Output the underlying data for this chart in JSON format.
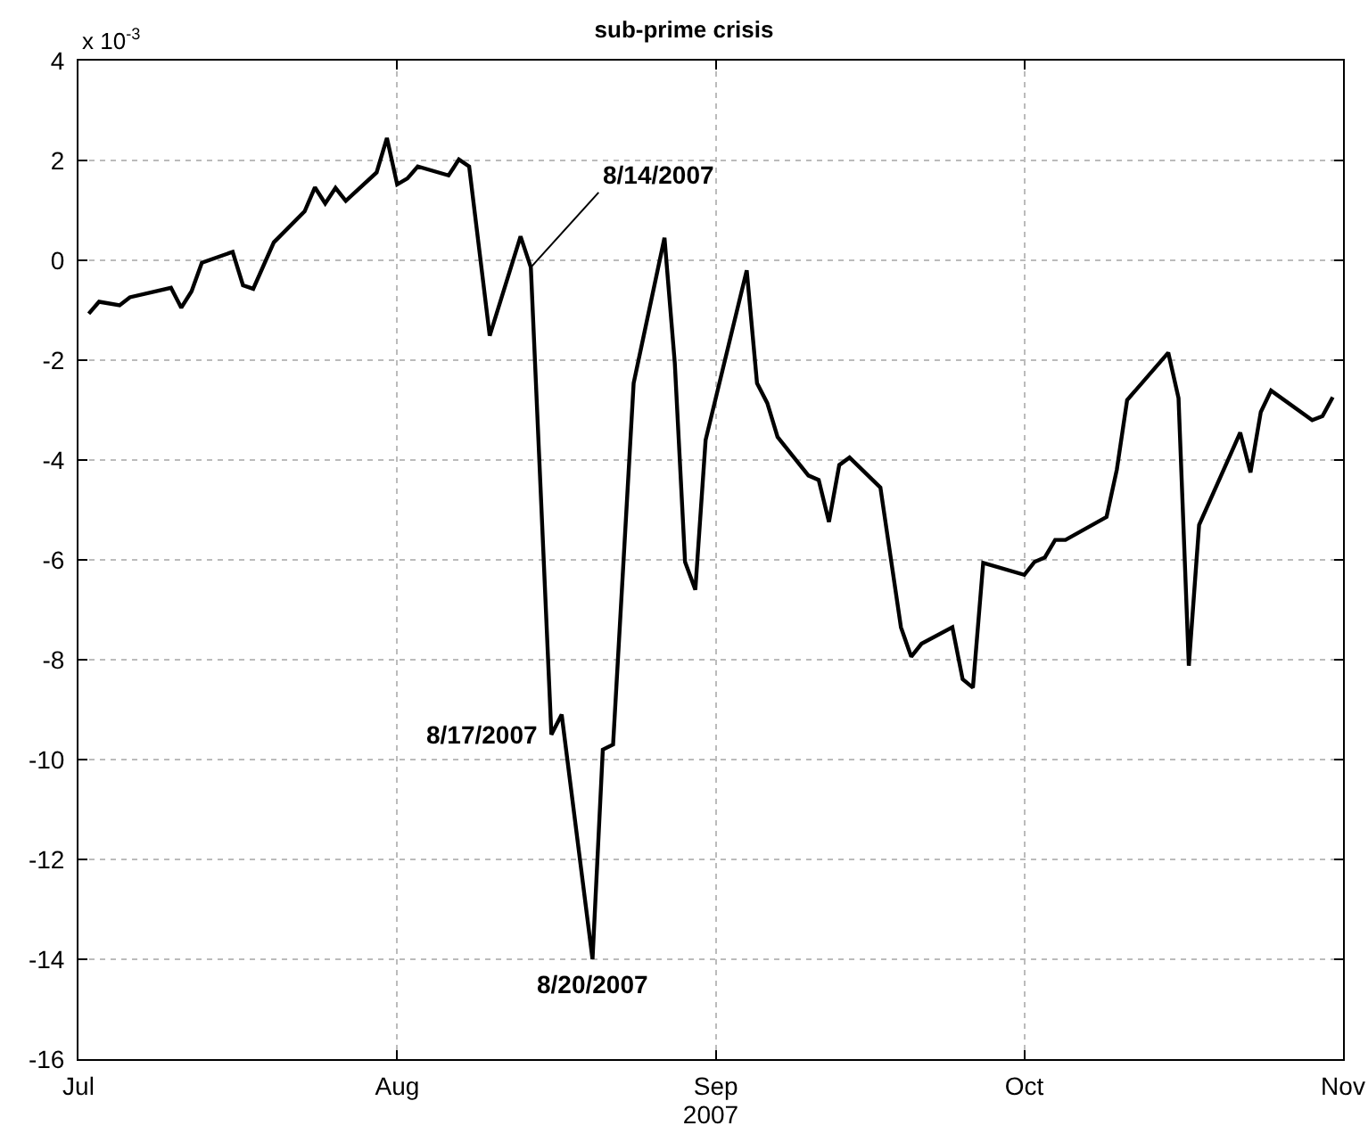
{
  "chart_data": {
    "type": "line",
    "title": "sub-prime crisis",
    "xlabel": "2007",
    "x": [
      "2007-07-02",
      "2007-07-03",
      "2007-07-05",
      "2007-07-06",
      "2007-07-10",
      "2007-07-11",
      "2007-07-12",
      "2007-07-13",
      "2007-07-16",
      "2007-07-17",
      "2007-07-18",
      "2007-07-20",
      "2007-07-23",
      "2007-07-24",
      "2007-07-25",
      "2007-07-26",
      "2007-07-27",
      "2007-07-30",
      "2007-07-31",
      "2007-08-01",
      "2007-08-02",
      "2007-08-03",
      "2007-08-06",
      "2007-08-07",
      "2007-08-08",
      "2007-08-10",
      "2007-08-13",
      "2007-08-14",
      "2007-08-16",
      "2007-08-17",
      "2007-08-20",
      "2007-08-21",
      "2007-08-22",
      "2007-08-24",
      "2007-08-27",
      "2007-08-28",
      "2007-08-29",
      "2007-08-30",
      "2007-08-31",
      "2007-09-04",
      "2007-09-05",
      "2007-09-06",
      "2007-09-07",
      "2007-09-10",
      "2007-09-11",
      "2007-09-12",
      "2007-09-13",
      "2007-09-14",
      "2007-09-17",
      "2007-09-19",
      "2007-09-20",
      "2007-09-21",
      "2007-09-24",
      "2007-09-25",
      "2007-09-26",
      "2007-09-27",
      "2007-10-01",
      "2007-10-02",
      "2007-10-03",
      "2007-10-04",
      "2007-10-05",
      "2007-10-09",
      "2007-10-10",
      "2007-10-11",
      "2007-10-15",
      "2007-10-16",
      "2007-10-17",
      "2007-10-18",
      "2007-10-22",
      "2007-10-23",
      "2007-10-24",
      "2007-10-25",
      "2007-10-29",
      "2007-10-30",
      "2007-10-31"
    ],
    "series": [
      {
        "color": "#000000",
        "values": [
          -1.07,
          -0.83,
          -0.9,
          -0.74,
          -0.55,
          -0.95,
          -0.62,
          -0.05,
          0.17,
          -0.5,
          -0.57,
          0.36,
          0.98,
          1.46,
          1.14,
          1.45,
          1.19,
          1.76,
          2.45,
          1.52,
          1.64,
          1.88,
          1.7,
          2.02,
          1.88,
          -1.51,
          0.48,
          -0.14,
          -9.5,
          -9.1,
          -14.0,
          -9.8,
          -9.7,
          -2.46,
          0.45,
          -2.05,
          -6.04,
          -6.6,
          -3.6,
          -0.2,
          -2.46,
          -2.86,
          -3.54,
          -4.31,
          -4.4,
          -5.24,
          -4.1,
          -3.95,
          -4.55,
          -7.35,
          -7.94,
          -7.68,
          -7.35,
          -8.39,
          -8.56,
          -6.06,
          -6.3,
          -6.04,
          -5.95,
          -5.6,
          -5.6,
          -5.14,
          -4.19,
          -2.8,
          -1.85,
          -2.76,
          -8.12,
          -5.3,
          -3.45,
          -4.25,
          -3.04,
          -2.61,
          -3.2,
          -3.12,
          -2.74
        ]
      }
    ],
    "xlim": [
      "2007-07-01",
      "2007-11-01"
    ],
    "xticks": [
      {
        "value": "2007-07-01",
        "label": "Jul"
      },
      {
        "value": "2007-08-01",
        "label": "Aug"
      },
      {
        "value": "2007-09-01",
        "label": "Sep"
      },
      {
        "value": "2007-10-01",
        "label": "Oct"
      },
      {
        "value": "2007-11-01",
        "label": "Nov"
      }
    ],
    "ylim": [
      -16,
      4
    ],
    "yticks": [
      -16,
      -14,
      -12,
      -10,
      -8,
      -6,
      -4,
      -2,
      0,
      2,
      4
    ],
    "grid": true,
    "marker": "none",
    "line_style": "solid",
    "annotations": [
      "x 10$^{-3}$",
      {
        "text": "8/14/2007",
        "x": "2007-08-14",
        "y": -0.14
      },
      {
        "text": "8/17/2007",
        "x": "2007-08-16",
        "y": -9.5
      },
      {
        "text": "8/20/2007",
        "x": "2007-08-20",
        "y": -14.0
      }
    ]
  }
}
